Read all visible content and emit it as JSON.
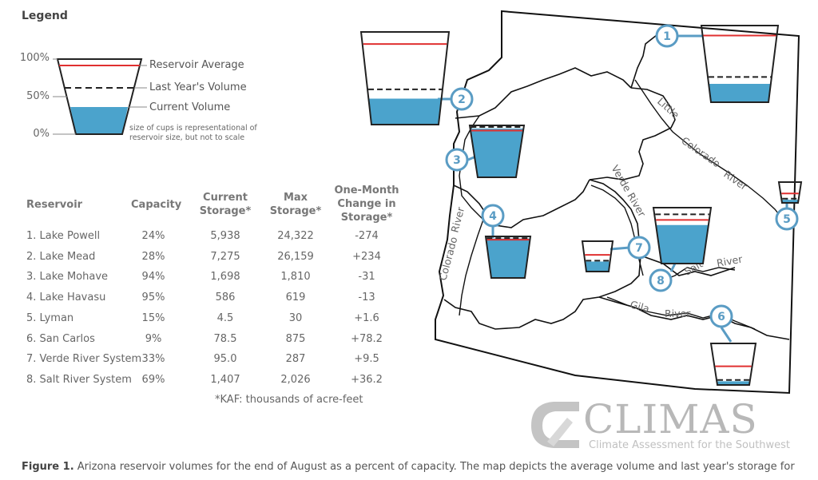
{
  "legend": {
    "title": "Legend",
    "pct_100": "100%",
    "pct_50": "50%",
    "pct_0": "0%",
    "avg_label": "Reservoir Average",
    "last_year_label": "Last Year's Volume",
    "current_label": "Current Volume",
    "note_line1": "size of cups is representational of",
    "note_line2": "reservoir size, but not to scale",
    "colors": {
      "water": "#4ba3cc",
      "average": "#e03030",
      "last_year": "#222222",
      "badge": "#5a9cc4"
    }
  },
  "table": {
    "headers": {
      "reservoir": "Reservoir",
      "capacity": "Capacity",
      "current": [
        "Current",
        "Storage*"
      ],
      "max": [
        "Max",
        "Storage*"
      ],
      "change": [
        "One-Month",
        "Change in",
        "Storage*"
      ]
    },
    "rows": [
      {
        "name": "1. Lake Powell",
        "capacity": "24%",
        "current": "5,938",
        "max": "24,322",
        "change": "-274"
      },
      {
        "name": "2. Lake Mead",
        "capacity": "28%",
        "current": "7,275",
        "max": "26,159",
        "change": "+234"
      },
      {
        "name": "3. Lake Mohave",
        "capacity": "94%",
        "current": "1,698",
        "max": "1,810",
        "change": "-31"
      },
      {
        "name": "4. Lake Havasu",
        "capacity": "95%",
        "current": "586",
        "max": "619",
        "change": "-13"
      },
      {
        "name": "5. Lyman",
        "capacity": "15%",
        "current": "4.5",
        "max": "30",
        "change": "+1.6"
      },
      {
        "name": "6. San Carlos",
        "capacity": "9%",
        "current": "78.5",
        "max": "875",
        "change": "+78.2"
      },
      {
        "name": "7. Verde River System",
        "capacity": "33%",
        "current": "95.0",
        "max": "287",
        "change": "+9.5"
      },
      {
        "name": "8. Salt River System",
        "capacity": "69%",
        "current": "1,407",
        "max": "2,026",
        "change": "+36.2"
      }
    ],
    "note": "*KAF: thousands of acre-feet"
  },
  "map": {
    "reservoirs": [
      {
        "id": "1",
        "current_fraction": 0.24,
        "average_fraction": 0.87,
        "last_year_fraction": 0.33
      },
      {
        "id": "2",
        "current_fraction": 0.28,
        "average_fraction": 0.87,
        "last_year_fraction": 0.38
      },
      {
        "id": "3",
        "current_fraction": 0.94,
        "average_fraction": 0.9,
        "last_year_fraction": 0.97
      },
      {
        "id": "4",
        "current_fraction": 0.95,
        "average_fraction": 0.92,
        "last_year_fraction": 0.96
      },
      {
        "id": "5",
        "current_fraction": 0.15,
        "average_fraction": 0.45,
        "last_year_fraction": 0.2
      },
      {
        "id": "6",
        "current_fraction": 0.09,
        "average_fraction": 0.45,
        "last_year_fraction": 0.12
      },
      {
        "id": "7",
        "current_fraction": 0.33,
        "average_fraction": 0.55,
        "last_year_fraction": 0.36
      },
      {
        "id": "8",
        "current_fraction": 0.69,
        "average_fraction": 0.78,
        "last_year_fraction": 0.88
      }
    ],
    "rivers": {
      "little": "Little",
      "colorado_east": "Colorado",
      "river_east": "River",
      "verde": "Verde River",
      "colorado_west": "Colorado",
      "river_west": "River",
      "salt": "Salt",
      "river_salt": "River",
      "gila": "Gila",
      "river_gila": "River"
    }
  },
  "logo": {
    "name": "CLIMAS",
    "subtitle": "Climate Assessment for the Southwest"
  },
  "caption": {
    "label": "Figure 1.",
    "text": " Arizona reservoir volumes for the end of August as a percent of capacity. The map depicts the average volume and last year's storage for"
  }
}
